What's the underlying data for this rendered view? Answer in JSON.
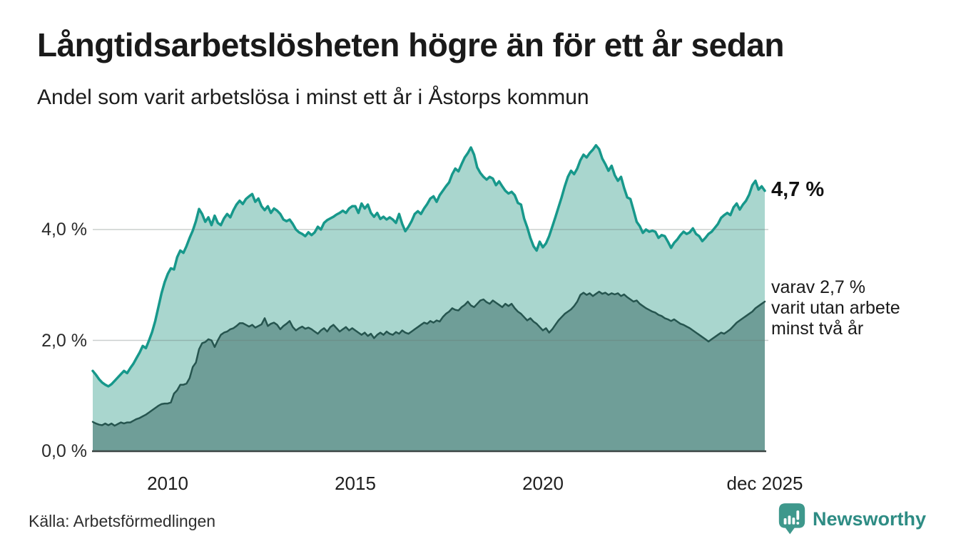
{
  "header": {
    "title": "Långtidsarbetslösheten högre än för ett år sedan",
    "subtitle": "Andel som varit arbetslösa i minst ett år i Åstorps kommun"
  },
  "annotations": {
    "latest_total": "4,7 %",
    "secondary": {
      "lines": [
        "varav 2,7 %",
        "varit utan arbete",
        "minst två år"
      ]
    }
  },
  "footer": {
    "source": "Källa: Arbetsförmedlingen",
    "brand": "Newsworthy"
  },
  "colors": {
    "total_line": "#17988b",
    "total_fill": "#a9d6ce",
    "two_year_line": "#26554f",
    "two_year_fill": "#6f9e98",
    "gridline": "#6b7573",
    "baseline": "#3c4745",
    "logo_teal": "#3e988c",
    "brand_text": "#2e8c84"
  },
  "chart_data": {
    "type": "area",
    "title": "Långtidsarbetslösheten högre än för ett år sedan",
    "subtitle": "Andel som varit arbetslösa i minst ett år i Åstorps kommun",
    "unit": "%",
    "grid": true,
    "legend_position": "end-labels",
    "x_start_year": 2008,
    "x_step_months": 1,
    "xlim": [
      2008.0,
      2025.9167
    ],
    "ylim": [
      0,
      5.8
    ],
    "yticks": [
      {
        "value": 0,
        "label": "0,0 %"
      },
      {
        "value": 2,
        "label": "2,0 %"
      },
      {
        "value": 4,
        "label": "4,0 %"
      }
    ],
    "xticks": [
      {
        "t": 2010.0,
        "label": "2010"
      },
      {
        "t": 2015.0,
        "label": "2015"
      },
      {
        "t": 2020.0,
        "label": "2020"
      },
      {
        "t": 2025.9167,
        "label": "dec 2025"
      }
    ],
    "series": [
      {
        "name": "Arbetslösa minst ett år",
        "end_value": 4.7,
        "line_color": "#17988b",
        "fill_color": "#a9d6ce",
        "line_width": 3.5,
        "values": [
          1.45,
          1.38,
          1.3,
          1.24,
          1.2,
          1.17,
          1.21,
          1.27,
          1.33,
          1.39,
          1.45,
          1.41,
          1.5,
          1.58,
          1.68,
          1.78,
          1.9,
          1.86,
          2.0,
          2.15,
          2.35,
          2.6,
          2.85,
          3.05,
          3.2,
          3.3,
          3.28,
          3.5,
          3.62,
          3.58,
          3.7,
          3.85,
          3.98,
          4.15,
          4.37,
          4.28,
          4.14,
          4.22,
          4.08,
          4.25,
          4.12,
          4.08,
          4.2,
          4.28,
          4.22,
          4.35,
          4.45,
          4.52,
          4.46,
          4.55,
          4.6,
          4.64,
          4.5,
          4.56,
          4.42,
          4.35,
          4.42,
          4.3,
          4.38,
          4.34,
          4.28,
          4.18,
          4.15,
          4.18,
          4.1,
          4.0,
          3.95,
          3.92,
          3.88,
          3.95,
          3.9,
          3.95,
          4.05,
          4.0,
          4.12,
          4.17,
          4.2,
          4.23,
          4.27,
          4.3,
          4.34,
          4.3,
          4.38,
          4.42,
          4.42,
          4.3,
          4.47,
          4.38,
          4.45,
          4.3,
          4.23,
          4.3,
          4.19,
          4.23,
          4.18,
          4.22,
          4.18,
          4.12,
          4.28,
          4.1,
          3.97,
          4.05,
          4.15,
          4.28,
          4.33,
          4.28,
          4.38,
          4.46,
          4.56,
          4.6,
          4.5,
          4.62,
          4.7,
          4.78,
          4.85,
          5.0,
          5.1,
          5.05,
          5.18,
          5.3,
          5.38,
          5.48,
          5.35,
          5.12,
          5.02,
          4.95,
          4.9,
          4.95,
          4.92,
          4.8,
          4.87,
          4.78,
          4.7,
          4.65,
          4.68,
          4.62,
          4.48,
          4.45,
          4.2,
          4.04,
          3.85,
          3.7,
          3.62,
          3.78,
          3.68,
          3.75,
          3.88,
          4.05,
          4.22,
          4.4,
          4.58,
          4.78,
          4.95,
          5.06,
          5.0,
          5.1,
          5.25,
          5.35,
          5.3,
          5.38,
          5.44,
          5.52,
          5.45,
          5.28,
          5.18,
          5.06,
          5.15,
          4.98,
          4.88,
          4.95,
          4.75,
          4.58,
          4.55,
          4.35,
          4.14,
          4.06,
          3.94,
          4.0,
          3.96,
          3.98,
          3.96,
          3.85,
          3.9,
          3.88,
          3.78,
          3.67,
          3.76,
          3.82,
          3.9,
          3.96,
          3.92,
          3.95,
          4.02,
          3.92,
          3.88,
          3.79,
          3.85,
          3.92,
          3.96,
          4.03,
          4.1,
          4.21,
          4.26,
          4.3,
          4.26,
          4.4,
          4.47,
          4.36,
          4.45,
          4.52,
          4.63,
          4.8,
          4.88,
          4.72,
          4.78,
          4.7
        ]
      },
      {
        "name": "Arbetslösa minst två år",
        "end_value": 2.7,
        "line_color": "#26554f",
        "fill_color": "#6f9e98",
        "line_width": 2.5,
        "values": [
          0.53,
          0.5,
          0.48,
          0.47,
          0.5,
          0.47,
          0.5,
          0.46,
          0.49,
          0.52,
          0.5,
          0.52,
          0.52,
          0.55,
          0.58,
          0.6,
          0.63,
          0.66,
          0.7,
          0.74,
          0.78,
          0.82,
          0.85,
          0.86,
          0.86,
          0.88,
          1.04,
          1.1,
          1.2,
          1.2,
          1.22,
          1.32,
          1.52,
          1.6,
          1.84,
          1.95,
          1.97,
          2.02,
          2.0,
          1.88,
          2.0,
          2.1,
          2.14,
          2.16,
          2.2,
          2.22,
          2.26,
          2.31,
          2.31,
          2.28,
          2.25,
          2.28,
          2.23,
          2.26,
          2.29,
          2.4,
          2.26,
          2.3,
          2.32,
          2.28,
          2.2,
          2.26,
          2.3,
          2.35,
          2.24,
          2.18,
          2.22,
          2.25,
          2.21,
          2.23,
          2.2,
          2.16,
          2.12,
          2.18,
          2.22,
          2.16,
          2.24,
          2.28,
          2.22,
          2.16,
          2.2,
          2.24,
          2.18,
          2.22,
          2.18,
          2.14,
          2.1,
          2.14,
          2.08,
          2.12,
          2.04,
          2.1,
          2.14,
          2.1,
          2.16,
          2.12,
          2.1,
          2.15,
          2.12,
          2.18,
          2.14,
          2.12,
          2.16,
          2.2,
          2.24,
          2.28,
          2.32,
          2.3,
          2.35,
          2.32,
          2.36,
          2.34,
          2.42,
          2.48,
          2.52,
          2.58,
          2.55,
          2.54,
          2.6,
          2.64,
          2.7,
          2.63,
          2.6,
          2.66,
          2.72,
          2.74,
          2.69,
          2.66,
          2.72,
          2.68,
          2.64,
          2.6,
          2.66,
          2.62,
          2.66,
          2.58,
          2.52,
          2.48,
          2.42,
          2.36,
          2.4,
          2.34,
          2.3,
          2.24,
          2.18,
          2.22,
          2.14,
          2.2,
          2.28,
          2.36,
          2.42,
          2.48,
          2.52,
          2.56,
          2.62,
          2.7,
          2.82,
          2.86,
          2.82,
          2.85,
          2.8,
          2.84,
          2.88,
          2.84,
          2.86,
          2.82,
          2.85,
          2.83,
          2.85,
          2.8,
          2.83,
          2.78,
          2.74,
          2.7,
          2.72,
          2.66,
          2.62,
          2.58,
          2.55,
          2.52,
          2.5,
          2.46,
          2.44,
          2.4,
          2.38,
          2.35,
          2.38,
          2.34,
          2.3,
          2.28,
          2.25,
          2.22,
          2.18,
          2.14,
          2.1,
          2.06,
          2.02,
          1.98,
          2.02,
          2.06,
          2.1,
          2.14,
          2.12,
          2.16,
          2.2,
          2.26,
          2.32,
          2.36,
          2.4,
          2.44,
          2.48,
          2.52,
          2.58,
          2.62,
          2.66,
          2.7
        ]
      }
    ]
  }
}
